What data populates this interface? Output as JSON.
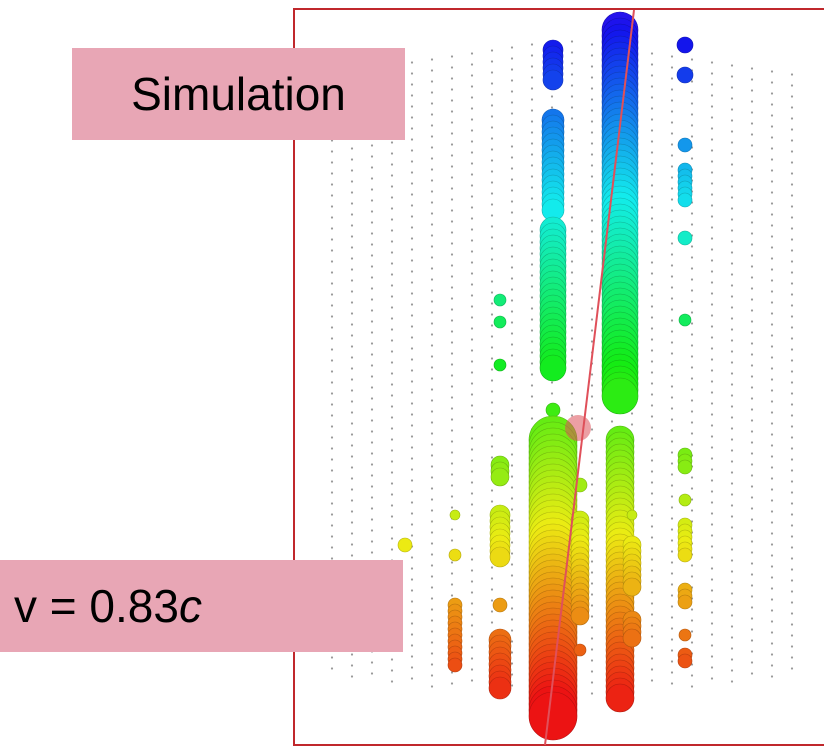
{
  "labels": {
    "title": "Simulation",
    "velocity": "v = 0.83",
    "velocity_unit": "c"
  }
}
